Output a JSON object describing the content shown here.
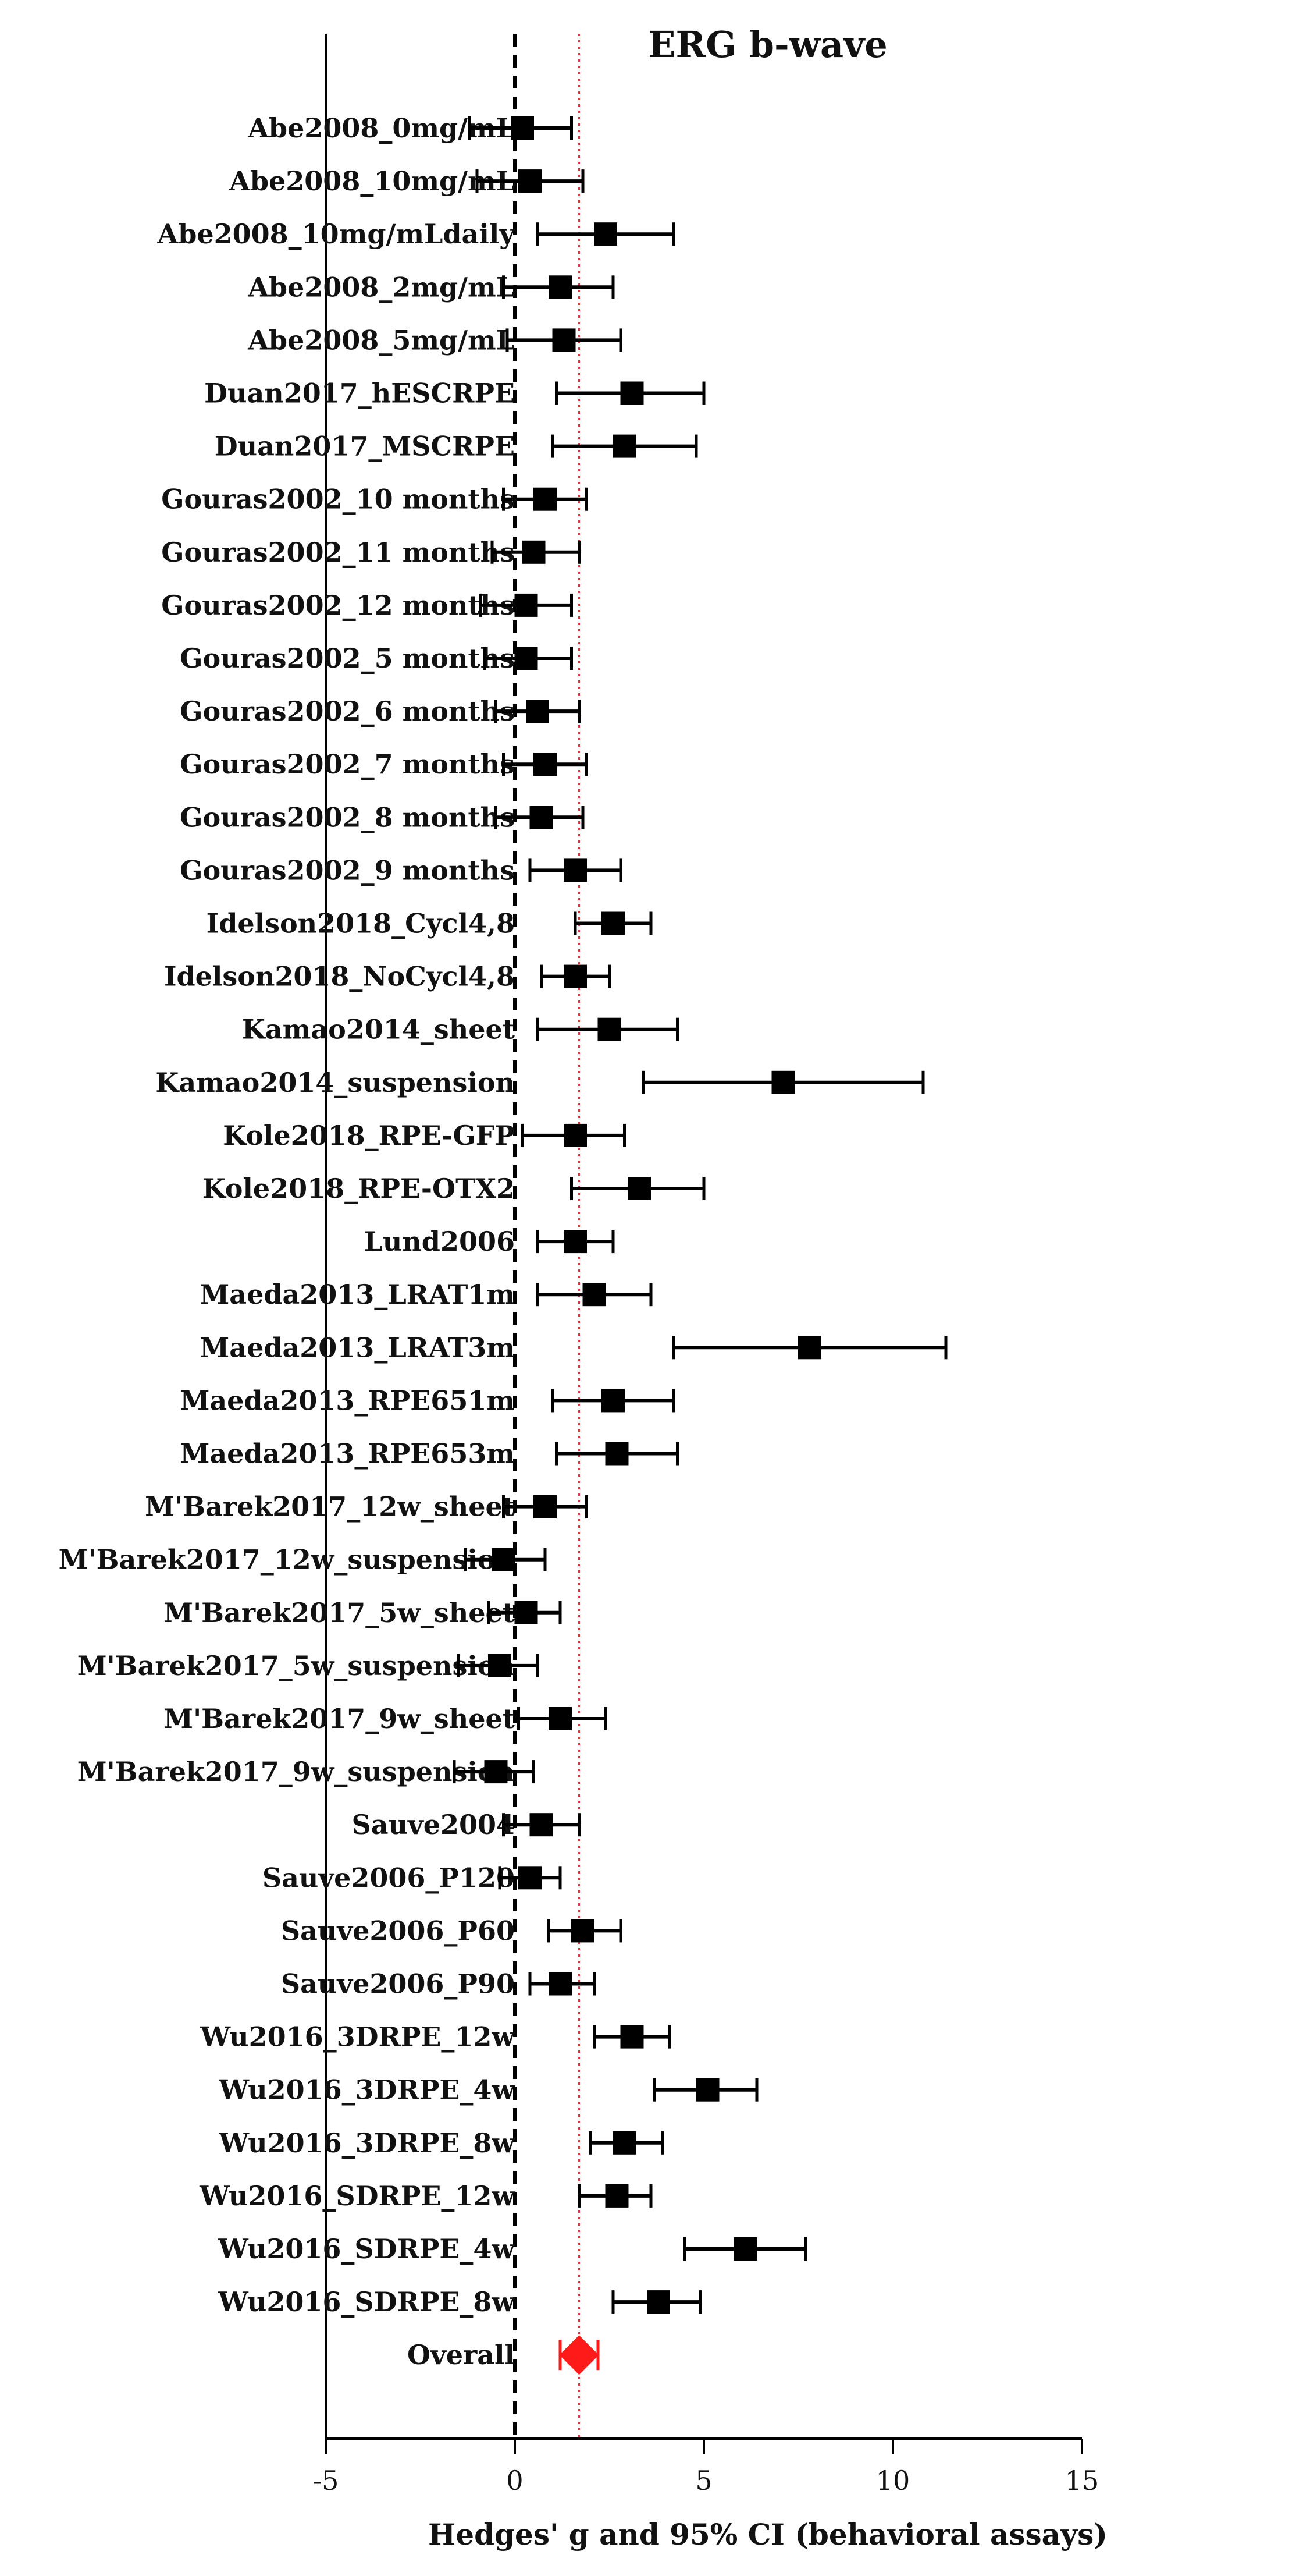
{
  "chart_data": {
    "type": "forest",
    "title": "ERG b-wave",
    "xlabel": "Hedges' g and 95% CI (behavioral assays)",
    "xlim": [
      -5,
      15
    ],
    "xticks": [
      "-5",
      "0",
      "5",
      "10",
      "15"
    ],
    "xtick_values": [
      -5,
      0,
      5,
      10,
      15
    ],
    "null_line": 0,
    "overall_line": 1.7,
    "studies": [
      {
        "label": "Abe2008_0mg/mL",
        "g": 0.2,
        "lo": -1.2,
        "hi": 1.5
      },
      {
        "label": "Abe2008_10mg/mL",
        "g": 0.4,
        "lo": -1.0,
        "hi": 1.8
      },
      {
        "label": "Abe2008_10mg/mLdaily",
        "g": 2.4,
        "lo": 0.6,
        "hi": 4.2
      },
      {
        "label": "Abe2008_2mg/mL",
        "g": 1.2,
        "lo": -0.3,
        "hi": 2.6
      },
      {
        "label": "Abe2008_5mg/mL",
        "g": 1.3,
        "lo": -0.2,
        "hi": 2.8
      },
      {
        "label": "Duan2017_hESCRPE",
        "g": 3.1,
        "lo": 1.1,
        "hi": 5.0
      },
      {
        "label": "Duan2017_MSCRPE",
        "g": 2.9,
        "lo": 1.0,
        "hi": 4.8
      },
      {
        "label": "Gouras2002_10 months",
        "g": 0.8,
        "lo": -0.3,
        "hi": 1.9
      },
      {
        "label": "Gouras2002_11 months",
        "g": 0.5,
        "lo": -0.6,
        "hi": 1.7
      },
      {
        "label": "Gouras2002_12 months",
        "g": 0.3,
        "lo": -0.9,
        "hi": 1.5
      },
      {
        "label": "Gouras2002_5 months",
        "g": 0.3,
        "lo": -0.8,
        "hi": 1.5
      },
      {
        "label": "Gouras2002_6 months",
        "g": 0.6,
        "lo": -0.5,
        "hi": 1.7
      },
      {
        "label": "Gouras2002_7 months",
        "g": 0.8,
        "lo": -0.3,
        "hi": 1.9
      },
      {
        "label": "Gouras2002_8 months",
        "g": 0.7,
        "lo": -0.5,
        "hi": 1.8
      },
      {
        "label": "Gouras2002_9 months",
        "g": 1.6,
        "lo": 0.4,
        "hi": 2.8
      },
      {
        "label": "Idelson2018_Cycl4,8",
        "g": 2.6,
        "lo": 1.6,
        "hi": 3.6
      },
      {
        "label": "Idelson2018_NoCycl4,8",
        "g": 1.6,
        "lo": 0.7,
        "hi": 2.5
      },
      {
        "label": "Kamao2014_sheet",
        "g": 2.5,
        "lo": 0.6,
        "hi": 4.3
      },
      {
        "label": "Kamao2014_suspension",
        "g": 7.1,
        "lo": 3.4,
        "hi": 10.8
      },
      {
        "label": "Kole2018_RPE-GFP",
        "g": 1.6,
        "lo": 0.2,
        "hi": 2.9
      },
      {
        "label": "Kole2018_RPE-OTX2",
        "g": 3.3,
        "lo": 1.5,
        "hi": 5.0
      },
      {
        "label": "Lund2006",
        "g": 1.6,
        "lo": 0.6,
        "hi": 2.6
      },
      {
        "label": "Maeda2013_LRAT1m",
        "g": 2.1,
        "lo": 0.6,
        "hi": 3.6
      },
      {
        "label": "Maeda2013_LRAT3m",
        "g": 7.8,
        "lo": 4.2,
        "hi": 11.4
      },
      {
        "label": "Maeda2013_RPE651m",
        "g": 2.6,
        "lo": 1.0,
        "hi": 4.2
      },
      {
        "label": "Maeda2013_RPE653m",
        "g": 2.7,
        "lo": 1.1,
        "hi": 4.3
      },
      {
        "label": "M'Barek2017_12w_sheet",
        "g": 0.8,
        "lo": -0.3,
        "hi": 1.9
      },
      {
        "label": "M'Barek2017_12w_suspension",
        "g": -0.3,
        "lo": -1.3,
        "hi": 0.8
      },
      {
        "label": "M'Barek2017_5w_sheet",
        "g": 0.3,
        "lo": -0.7,
        "hi": 1.2
      },
      {
        "label": "M'Barek2017_5w_suspension",
        "g": -0.4,
        "lo": -1.5,
        "hi": 0.6
      },
      {
        "label": "M'Barek2017_9w_sheet",
        "g": 1.2,
        "lo": 0.1,
        "hi": 2.4
      },
      {
        "label": "M'Barek2017_9w_suspension",
        "g": -0.5,
        "lo": -1.6,
        "hi": 0.5
      },
      {
        "label": "Sauve2004",
        "g": 0.7,
        "lo": -0.3,
        "hi": 1.7
      },
      {
        "label": "Sauve2006_P120",
        "g": 0.4,
        "lo": -0.4,
        "hi": 1.2
      },
      {
        "label": "Sauve2006_P60",
        "g": 1.8,
        "lo": 0.9,
        "hi": 2.8
      },
      {
        "label": "Sauve2006_P90",
        "g": 1.2,
        "lo": 0.4,
        "hi": 2.1
      },
      {
        "label": "Wu2016_3DRPE_12w",
        "g": 3.1,
        "lo": 2.1,
        "hi": 4.1
      },
      {
        "label": "Wu2016_3DRPE_4w",
        "g": 5.1,
        "lo": 3.7,
        "hi": 6.4
      },
      {
        "label": "Wu2016_3DRPE_8w",
        "g": 2.9,
        "lo": 2.0,
        "hi": 3.9
      },
      {
        "label": "Wu2016_SDRPE_12w",
        "g": 2.7,
        "lo": 1.7,
        "hi": 3.6
      },
      {
        "label": "Wu2016_SDRPE_4w",
        "g": 6.1,
        "lo": 4.5,
        "hi": 7.7
      },
      {
        "label": "Wu2016_SDRPE_8w",
        "g": 3.8,
        "lo": 2.6,
        "hi": 4.9
      }
    ],
    "overall": {
      "label": "Overall",
      "g": 1.7,
      "lo": 1.2,
      "hi": 2.2
    },
    "colors": {
      "marker": "#000000",
      "overall": "#ff1a1a",
      "overall_line": "#d23a3a",
      "null_line": "#000000",
      "axis": "#000000"
    }
  }
}
